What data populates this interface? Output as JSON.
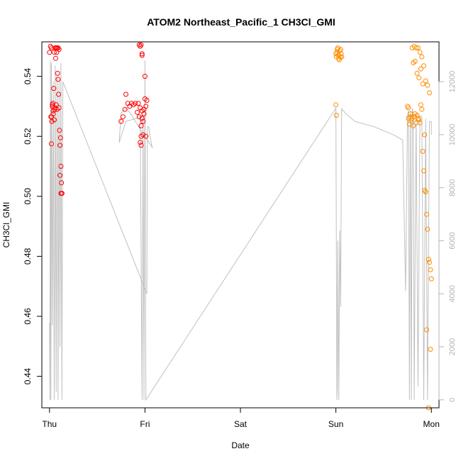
{
  "chart_data": {
    "type": "scatter",
    "title": "ATOM2 Northeast_Pacific_1 CH3Cl_GMI",
    "xlabel": "Date",
    "ylabel": "CH3Cl_GMI",
    "x_ticks": [
      "Thu",
      "Fri",
      "Sat",
      "Sun",
      "Mon"
    ],
    "x_unit": "days since Thu 00:00",
    "xlim": [
      -0.08,
      4.08
    ],
    "ylim": [
      0.4295,
      0.5515
    ],
    "y_ticks": [
      0.44,
      0.46,
      0.48,
      0.5,
      0.52,
      0.54
    ],
    "y_tick_labels": [
      "0.44",
      "0.46",
      "0.48",
      "0.50",
      "0.52",
      "0.54"
    ],
    "y2_ticks": [
      0,
      2000,
      4000,
      6000,
      8000,
      10000,
      12000
    ],
    "y2_tick_labels": [
      "0",
      "2000",
      "4000",
      "6000",
      "8000",
      "10000",
      "12000"
    ],
    "y2lim": [
      -300,
      13500
    ],
    "colors": {
      "flight1": "#ff0000",
      "flight2": "#ff8c00",
      "altitude": "#c0c0c0"
    },
    "series": [
      {
        "name": "Flight 1",
        "color": "#ff0000",
        "x": [
          0.0,
          0.01,
          0.015,
          0.02,
          0.025,
          0.03,
          0.035,
          0.04,
          0.045,
          0.05,
          0.055,
          0.06,
          0.065,
          0.07,
          0.075,
          0.08,
          0.085,
          0.09,
          0.095,
          0.1,
          0.105,
          0.11,
          0.115,
          0.12,
          0.125,
          0.13,
          0.02,
          0.04,
          0.06,
          0.08,
          0.1,
          0.02,
          0.03,
          0.05,
          0.07,
          0.09,
          0.11,
          0.12,
          0.13,
          0.75,
          0.77,
          0.79,
          0.8,
          0.82,
          0.84,
          0.86,
          0.88,
          0.9,
          0.92,
          0.93,
          0.94,
          0.95,
          0.96,
          0.97,
          0.98,
          0.99,
          1.0,
          1.01,
          1.02,
          0.94,
          0.95,
          0.96,
          0.97,
          0.95,
          0.96,
          0.97,
          0.98,
          1.0,
          1.01,
          0.96,
          0.97,
          0.99
        ],
        "y": [
          0.548,
          0.55,
          0.5265,
          0.5495,
          0.525,
          0.53,
          0.531,
          0.5275,
          0.536,
          0.5255,
          0.529,
          0.5295,
          0.546,
          0.5305,
          0.548,
          0.529,
          0.541,
          0.539,
          0.534,
          0.5295,
          0.522,
          0.517,
          0.5195,
          0.51,
          0.5045,
          0.501,
          0.5175,
          0.5285,
          0.5495,
          0.5495,
          0.549,
          0.5265,
          0.5305,
          0.548,
          0.5495,
          0.5495,
          0.507,
          0.501,
          0.501,
          0.525,
          0.5265,
          0.529,
          0.534,
          0.531,
          0.53,
          0.531,
          0.5305,
          0.531,
          0.528,
          0.531,
          0.5265,
          0.5295,
          0.5235,
          0.547,
          0.5205,
          0.529,
          0.5325,
          0.53,
          0.532,
          0.5505,
          0.55,
          0.5505,
          0.5475,
          0.518,
          0.52,
          0.5285,
          0.525,
          0.54,
          0.52,
          0.517,
          0.526,
          0.5275
        ]
      },
      {
        "name": "Flight 2",
        "color": "#ff8c00",
        "x": [
          3.0,
          3.005,
          3.01,
          3.015,
          3.02,
          3.025,
          3.03,
          3.035,
          3.04,
          3.045,
          3.05,
          3.055,
          3.06,
          3.0,
          3.005,
          3.75,
          3.76,
          3.77,
          3.78,
          3.79,
          3.8,
          3.81,
          3.82,
          3.83,
          3.84,
          3.85,
          3.86,
          3.87,
          3.88,
          3.89,
          3.9,
          3.91,
          3.92,
          3.93,
          3.94,
          3.95,
          3.96,
          3.97,
          3.98,
          3.99,
          4.0,
          3.8,
          3.82,
          3.84,
          3.86,
          3.88,
          3.9,
          3.92,
          3.94,
          3.96,
          3.98,
          3.81,
          3.83,
          3.85,
          3.87,
          3.89,
          3.91,
          3.93,
          3.95,
          3.97,
          3.99,
          3.76,
          3.78
        ],
        "y": [
          0.5475,
          0.5465,
          0.548,
          0.549,
          0.5495,
          0.547,
          0.546,
          0.5455,
          0.5485,
          0.5465,
          0.549,
          0.5475,
          0.5465,
          0.5305,
          0.527,
          0.53,
          0.526,
          0.524,
          0.5275,
          0.5255,
          0.526,
          0.5235,
          0.5265,
          0.5275,
          0.5245,
          0.527,
          0.526,
          0.5255,
          0.5245,
          0.5305,
          0.529,
          0.515,
          0.5085,
          0.502,
          0.5015,
          0.494,
          0.489,
          0.479,
          0.478,
          0.4755,
          0.4725,
          0.5495,
          0.55,
          0.5495,
          0.5495,
          0.548,
          0.5465,
          0.5435,
          0.5385,
          0.537,
          0.5345,
          0.5445,
          0.545,
          0.541,
          0.5395,
          0.5425,
          0.5375,
          0.5205,
          0.4555,
          0.4295,
          0.449,
          0.5295,
          0.5265
        ]
      }
    ],
    "secondary_series": {
      "name": "Altitude",
      "color": "#c0c0c0",
      "x": [
        0.0,
        0.005,
        0.01,
        0.015,
        0.02,
        0.03,
        0.04,
        0.05,
        0.06,
        0.07,
        0.08,
        0.09,
        0.1,
        0.11,
        0.12,
        0.13,
        0.14,
        1.02,
        1.025,
        1.03,
        1.04,
        1.05,
        1.06,
        1.07,
        1.08,
        0.95,
        0.9,
        0.85,
        0.8,
        0.75,
        0.73,
        0.8,
        0.9,
        0.95,
        0.97,
        0.98,
        0.99,
        1.0,
        1.01,
        3.0,
        3.01,
        3.015,
        3.02,
        3.03,
        3.04,
        3.05,
        3.06,
        3.07,
        3.08,
        3.1,
        3.2,
        3.4,
        3.6,
        3.7,
        3.73,
        3.75,
        3.76,
        3.77,
        3.78,
        3.79,
        3.8,
        3.81,
        3.82,
        3.84,
        3.86,
        3.88,
        3.9,
        3.92,
        3.94,
        3.96,
        3.98,
        4.0,
        4.0
      ],
      "y": [
        2900,
        0,
        12800,
        0,
        12700,
        2800,
        12000,
        0,
        12600,
        300,
        12200,
        0,
        12100,
        2000,
        12700,
        0,
        12000,
        4000,
        10300,
        10300,
        10300,
        10000,
        9800,
        9600,
        9500,
        10200,
        10500,
        10800,
        11000,
        10800,
        9700,
        10500,
        10600,
        10700,
        0,
        10700,
        0,
        12800,
        0,
        11000,
        0,
        500,
        6000,
        0,
        6400,
        3500,
        11000,
        10900,
        10900,
        10800,
        10500,
        10300,
        10000,
        9800,
        4100,
        10700,
        10900,
        0,
        10900,
        0,
        11000,
        10800,
        0,
        10800,
        500,
        10700,
        10700,
        0,
        10600,
        0,
        10500,
        10500,
        10000
      ]
    }
  }
}
